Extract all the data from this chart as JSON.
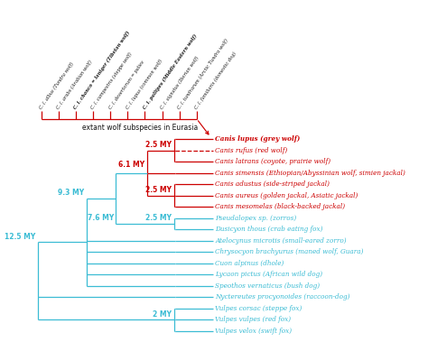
{
  "background_color": "#ffffff",
  "red_color": "#cc0000",
  "blue_color": "#3bbcd4",
  "black_color": "#111111",
  "subspecies": [
    "C. l. albus (Tundra wolf)",
    "C. l. arabs (Arabian wolf)",
    "C. l. chanco = laniger (Tibetan wolf)",
    "C. l. campestris (steppe wolf)",
    "C. l. desertorum = palies",
    "C. l. lupus (common wolf)",
    "C. l. pallipes (Middle Eastern wolf)",
    "C. l. signatus (Iberian wolf)",
    "C. l. tundrarum (Arctic Tundra wolf)",
    "C. l. familiaris (domestic dog)"
  ],
  "taxa": [
    "Canis lupus (grey wolf)",
    "Canis rufus (red wolf)",
    "Canis latrans (coyote, prairie wolf)",
    "Canis simensis (Ethiopian/Abyssinian wolf, simien jackal)",
    "Canis adustus (side-striped jackal)",
    "Canis aureus (golden jackal, Asiatic jackal)",
    "Canis mesomelas (black-backed jackal)",
    "Pseudalopex sp. (zorros)",
    "Dusicyon thous (crab eating fox)",
    "Atelocynus microtis (small-eared zorro)",
    "Chrysocyon brachyurus (maned wolf, Guara)",
    "Cuon alpinus (dhole)",
    "Lycaon pictus (African wild dog)",
    "Speothos vernaticus (bush dog)",
    "Nyctereutes procyonoides (raccoon-dog)",
    "Vulpes corsac (steppe fox)",
    "Vulpes vulpes (red fox)",
    "Vulpes velox (swift fox)"
  ],
  "taxa_is_red": [
    true,
    true,
    true,
    true,
    true,
    true,
    true,
    false,
    false,
    false,
    false,
    false,
    false,
    false,
    false,
    false,
    false,
    false
  ],
  "subspecies_label": "extant wolf subspecies in Eurasia"
}
